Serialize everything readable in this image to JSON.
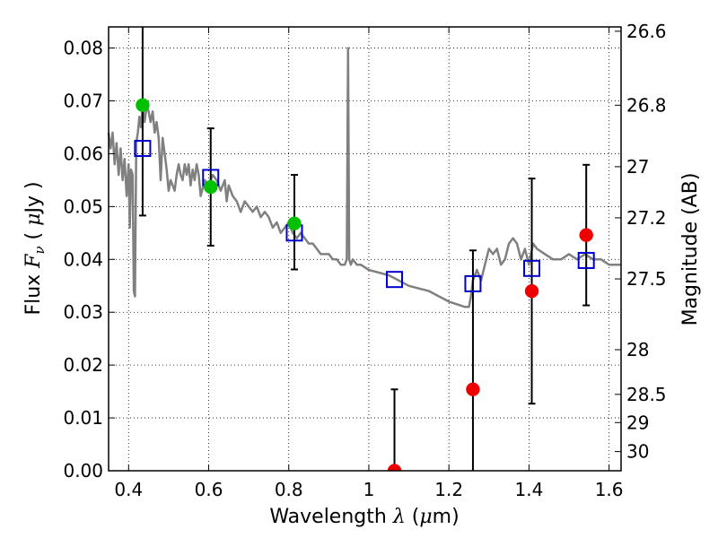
{
  "chart_data": {
    "type": "scatter",
    "xlabel_parts": [
      "Wavelength  ",
      "λ",
      " (",
      "μ",
      "m)"
    ],
    "ylabel_parts": [
      "Flux  ",
      "F",
      "ν",
      "  ( ",
      "μ",
      "Jy )"
    ],
    "y2label": "Magnitude (AB)",
    "xlim": [
      0.35,
      1.63
    ],
    "ylim": [
      0.0,
      0.084
    ],
    "grid": true,
    "x_ticks": [
      {
        "v": 0.4,
        "t": "0.4"
      },
      {
        "v": 0.6,
        "t": "0.6"
      },
      {
        "v": 0.8,
        "t": "0.8"
      },
      {
        "v": 1.0,
        "t": "1"
      },
      {
        "v": 1.2,
        "t": "1.2"
      },
      {
        "v": 1.4,
        "t": "1.4"
      },
      {
        "v": 1.6,
        "t": "1.6"
      }
    ],
    "y_ticks": [
      {
        "v": 0.0,
        "t": "0.00"
      },
      {
        "v": 0.01,
        "t": "0.01"
      },
      {
        "v": 0.02,
        "t": "0.02"
      },
      {
        "v": 0.03,
        "t": "0.03"
      },
      {
        "v": 0.04,
        "t": "0.04"
      },
      {
        "v": 0.05,
        "t": "0.05"
      },
      {
        "v": 0.06,
        "t": "0.06"
      },
      {
        "v": 0.07,
        "t": "0.07"
      },
      {
        "v": 0.08,
        "t": "0.08"
      }
    ],
    "mag_ticks": [
      {
        "mag": 26.6,
        "t": "26.6"
      },
      {
        "mag": 26.8,
        "t": "26.8"
      },
      {
        "mag": 27.0,
        "t": "27"
      },
      {
        "mag": 27.2,
        "t": "27.2"
      },
      {
        "mag": 27.5,
        "t": "27.5"
      },
      {
        "mag": 28.0,
        "t": "28"
      },
      {
        "mag": 28.5,
        "t": "28.5"
      },
      {
        "mag": 29.0,
        "t": "29"
      },
      {
        "mag": 30.0,
        "t": "30"
      }
    ],
    "model_spectrum": {
      "color": "#808080",
      "points": [
        [
          0.35,
          0.064
        ],
        [
          0.355,
          0.061
        ],
        [
          0.36,
          0.064
        ],
        [
          0.365,
          0.058
        ],
        [
          0.37,
          0.062
        ],
        [
          0.375,
          0.056
        ],
        [
          0.38,
          0.061
        ],
        [
          0.385,
          0.055
        ],
        [
          0.39,
          0.059
        ],
        [
          0.395,
          0.052
        ],
        [
          0.4,
          0.058
        ],
        [
          0.403,
          0.046
        ],
        [
          0.406,
          0.057
        ],
        [
          0.41,
          0.056
        ],
        [
          0.413,
          0.034
        ],
        [
          0.416,
          0.033
        ],
        [
          0.419,
          0.062
        ],
        [
          0.423,
          0.064
        ],
        [
          0.427,
          0.067
        ],
        [
          0.431,
          0.065
        ],
        [
          0.435,
          0.069
        ],
        [
          0.44,
          0.066
        ],
        [
          0.445,
          0.069
        ],
        [
          0.45,
          0.068
        ],
        [
          0.455,
          0.066
        ],
        [
          0.46,
          0.068
        ],
        [
          0.465,
          0.064
        ],
        [
          0.47,
          0.066
        ],
        [
          0.475,
          0.063
        ],
        [
          0.48,
          0.055
        ],
        [
          0.485,
          0.063
        ],
        [
          0.49,
          0.06
        ],
        [
          0.495,
          0.057
        ],
        [
          0.5,
          0.053
        ],
        [
          0.505,
          0.055
        ],
        [
          0.51,
          0.054
        ],
        [
          0.515,
          0.053
        ],
        [
          0.52,
          0.056
        ],
        [
          0.525,
          0.058
        ],
        [
          0.53,
          0.056
        ],
        [
          0.535,
          0.055
        ],
        [
          0.54,
          0.058
        ],
        [
          0.545,
          0.056
        ],
        [
          0.55,
          0.058
        ],
        [
          0.555,
          0.054
        ],
        [
          0.56,
          0.057
        ],
        [
          0.565,
          0.055
        ],
        [
          0.57,
          0.058
        ],
        [
          0.575,
          0.056
        ],
        [
          0.58,
          0.052
        ],
        [
          0.59,
          0.055
        ],
        [
          0.6,
          0.054
        ],
        [
          0.61,
          0.056
        ],
        [
          0.62,
          0.055
        ],
        [
          0.63,
          0.053
        ],
        [
          0.64,
          0.055
        ],
        [
          0.645,
          0.051
        ],
        [
          0.65,
          0.054
        ],
        [
          0.66,
          0.052
        ],
        [
          0.67,
          0.051
        ],
        [
          0.68,
          0.049
        ],
        [
          0.69,
          0.051
        ],
        [
          0.7,
          0.05
        ],
        [
          0.71,
          0.049
        ],
        [
          0.72,
          0.05
        ],
        [
          0.73,
          0.048
        ],
        [
          0.74,
          0.049
        ],
        [
          0.75,
          0.048
        ],
        [
          0.76,
          0.046
        ],
        [
          0.77,
          0.047
        ],
        [
          0.78,
          0.045
        ],
        [
          0.79,
          0.046
        ],
        [
          0.8,
          0.047
        ],
        [
          0.81,
          0.045
        ],
        [
          0.82,
          0.044
        ],
        [
          0.83,
          0.045
        ],
        [
          0.84,
          0.044
        ],
        [
          0.85,
          0.043
        ],
        [
          0.86,
          0.043
        ],
        [
          0.87,
          0.042
        ],
        [
          0.88,
          0.041
        ],
        [
          0.89,
          0.041
        ],
        [
          0.9,
          0.041
        ],
        [
          0.91,
          0.04
        ],
        [
          0.92,
          0.04
        ],
        [
          0.93,
          0.039
        ],
        [
          0.94,
          0.039
        ],
        [
          0.945,
          0.04
        ],
        [
          0.948,
          0.08
        ],
        [
          0.951,
          0.04
        ],
        [
          0.955,
          0.039
        ],
        [
          0.96,
          0.04
        ],
        [
          0.97,
          0.039
        ],
        [
          0.98,
          0.039
        ],
        [
          1.0,
          0.038
        ],
        [
          1.05,
          0.037
        ],
        [
          1.1,
          0.035
        ],
        [
          1.15,
          0.034
        ],
        [
          1.2,
          0.032
        ],
        [
          1.24,
          0.031
        ],
        [
          1.25,
          0.031
        ],
        [
          1.255,
          0.033
        ],
        [
          1.26,
          0.036
        ],
        [
          1.27,
          0.038
        ],
        [
          1.28,
          0.036
        ],
        [
          1.29,
          0.039
        ],
        [
          1.3,
          0.042
        ],
        [
          1.31,
          0.041
        ],
        [
          1.32,
          0.042
        ],
        [
          1.33,
          0.039
        ],
        [
          1.34,
          0.04
        ],
        [
          1.35,
          0.043
        ],
        [
          1.36,
          0.044
        ],
        [
          1.37,
          0.043
        ],
        [
          1.38,
          0.04
        ],
        [
          1.39,
          0.042
        ],
        [
          1.4,
          0.039
        ],
        [
          1.41,
          0.043
        ],
        [
          1.42,
          0.042
        ],
        [
          1.44,
          0.041
        ],
        [
          1.46,
          0.04
        ],
        [
          1.48,
          0.04
        ],
        [
          1.5,
          0.041
        ],
        [
          1.52,
          0.04
        ],
        [
          1.54,
          0.041
        ],
        [
          1.56,
          0.04
        ],
        [
          1.58,
          0.04
        ],
        [
          1.6,
          0.039
        ],
        [
          1.63,
          0.039
        ]
      ]
    },
    "series": [
      {
        "marker": "open-square",
        "color": "#0000cc",
        "points": [
          {
            "x": 0.435,
            "y": 0.061
          },
          {
            "x": 0.605,
            "y": 0.0555
          },
          {
            "x": 0.814,
            "y": 0.045
          },
          {
            "x": 1.064,
            "y": 0.0362
          },
          {
            "x": 1.26,
            "y": 0.0354
          },
          {
            "x": 1.407,
            "y": 0.0383
          },
          {
            "x": 1.543,
            "y": 0.0398
          }
        ]
      },
      {
        "marker": "filled-circle",
        "color": "#00c000",
        "points": [
          {
            "x": 0.435,
            "y": 0.0692
          },
          {
            "x": 0.605,
            "y": 0.0537
          },
          {
            "x": 0.814,
            "y": 0.0468
          }
        ]
      },
      {
        "marker": "filled-circle",
        "color": "#ee0000",
        "points": [
          {
            "x": 1.064,
            "y": 0.0
          },
          {
            "x": 1.26,
            "y": 0.0154
          },
          {
            "x": 1.407,
            "y": 0.034
          },
          {
            "x": 1.543,
            "y": 0.0446
          }
        ]
      }
    ],
    "error_bars": [
      {
        "x": 0.435,
        "y_low": 0.0483,
        "y_high": 0.085
      },
      {
        "x": 0.605,
        "y_low": 0.0426,
        "y_high": 0.0648
      },
      {
        "x": 0.814,
        "y_low": 0.0381,
        "y_high": 0.056
      },
      {
        "x": 1.064,
        "y_low": 0.0,
        "y_high": 0.0154
      },
      {
        "x": 1.26,
        "y_low": 0.0,
        "y_high": 0.0417
      },
      {
        "x": 1.407,
        "y_low": 0.0127,
        "y_high": 0.0553
      },
      {
        "x": 1.543,
        "y_low": 0.0313,
        "y_high": 0.0579
      }
    ]
  }
}
